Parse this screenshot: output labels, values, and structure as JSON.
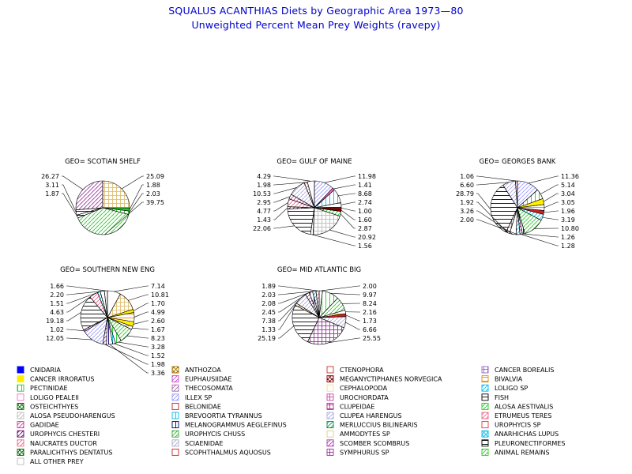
{
  "title": "SQUALUS ACANTHIAS Diets by Geographic Area 1973—80",
  "subtitle": "Unweighted Percent Mean Prey Weights (ravepy)",
  "chart_data": {
    "type": "pie",
    "legend_position": "bottom",
    "legend": [
      {
        "name": "CNIDARIA",
        "color": "#0000ff",
        "pattern": "solid"
      },
      {
        "name": "ANTHOZOA",
        "color": "#a07000",
        "pattern": "cross"
      },
      {
        "name": "CTENOPHORA",
        "color": "#cc3333",
        "pattern": "none"
      },
      {
        "name": "CANCER BOREALIS",
        "color": "#9966cc",
        "pattern": "grid"
      },
      {
        "name": "CANCER IRRORATUS",
        "color": "#ffee00",
        "pattern": "solid"
      },
      {
        "name": "EUPHAUSIIDAE",
        "color": "#cc44cc",
        "pattern": "diag"
      },
      {
        "name": "MEGANYCTIPHANES NORVEGICA",
        "color": "#800000",
        "pattern": "crossgrid"
      },
      {
        "name": "BIVALVIA",
        "color": "#ee8800",
        "pattern": "hlines"
      },
      {
        "name": "PECTINIDAE",
        "color": "#22cc22",
        "pattern": "vlines"
      },
      {
        "name": "THECOSOMATA",
        "color": "#aa66aa",
        "pattern": "diag"
      },
      {
        "name": "CEPHALOPODA",
        "color": "#eedd99",
        "pattern": "none"
      },
      {
        "name": "LOLIGO SP",
        "color": "#00bbee",
        "pattern": "diag"
      },
      {
        "name": "LOLIGO PEALEII",
        "color": "#ff66cc",
        "pattern": "none"
      },
      {
        "name": "ILLEX SP",
        "color": "#9999ff",
        "pattern": "diag"
      },
      {
        "name": "UROCHORDATA",
        "color": "#cc44aa",
        "pattern": "grid"
      },
      {
        "name": "FISH",
        "color": "#000000",
        "pattern": "hlines"
      },
      {
        "name": "OSTEICHTHYES",
        "color": "#006600",
        "pattern": "cross"
      },
      {
        "name": "BELONIDAE",
        "color": "#cc2222",
        "pattern": "none"
      },
      {
        "name": "CLUPEIDAE",
        "color": "#aa3388",
        "pattern": "grid"
      },
      {
        "name": "ALOSA AESTIVALIS",
        "color": "#22cc22",
        "pattern": "diag"
      },
      {
        "name": "ALOSA PSEUDOHARENGUS",
        "color": "#bbbbbb",
        "pattern": "diag"
      },
      {
        "name": "BREVOORTIA TYRANNUS",
        "color": "#00bbee",
        "pattern": "vlines"
      },
      {
        "name": "CLUPEA HARENGUS",
        "color": "#aaaadd",
        "pattern": "diag"
      },
      {
        "name": "ETRUMEUS TERES",
        "color": "#ee6688",
        "pattern": "diag"
      },
      {
        "name": "GADIDAE",
        "color": "#cc3399",
        "pattern": "diag"
      },
      {
        "name": "MELANOGRAMMUS AEGLEFINUS",
        "color": "#000066",
        "pattern": "vlines"
      },
      {
        "name": "MERLUCCIUS BILINEARIS",
        "color": "#008844",
        "pattern": "diag"
      },
      {
        "name": "UROPHYCIS SP",
        "color": "#ee3333",
        "pattern": "none"
      },
      {
        "name": "UROPHYCIS CHESTERI",
        "color": "#660066",
        "pattern": "diag"
      },
      {
        "name": "UROPHYCIS CHUSS",
        "color": "#33aa33",
        "pattern": "diag"
      },
      {
        "name": "AMMODYTES SP",
        "color": "#ddcc88",
        "pattern": "none"
      },
      {
        "name": "ANARHICHAS LUPUS",
        "color": "#00bbee",
        "pattern": "cross"
      },
      {
        "name": "NAUCRATES DUCTOR",
        "color": "#ee6688",
        "pattern": "diag"
      },
      {
        "name": "SCIAENIDAE",
        "color": "#aaaacc",
        "pattern": "diag"
      },
      {
        "name": "SCOMBER SCOMBRUS",
        "color": "#aa33aa",
        "pattern": "diag"
      },
      {
        "name": "PLEURONECTIFORMES",
        "color": "#000000",
        "pattern": "hlines"
      },
      {
        "name": "PARALICHTHYS DENTATUS",
        "color": "#006600",
        "pattern": "cross"
      },
      {
        "name": "SCOPHTHALMUS AQUOSUS",
        "color": "#cc2222",
        "pattern": "none"
      },
      {
        "name": "SYMPHURUS SP",
        "color": "#993399",
        "pattern": "grid"
      },
      {
        "name": "ANIMAL REMAINS",
        "color": "#22cc22",
        "pattern": "diag"
      },
      {
        "name": "ALL OTHER PREY",
        "color": "#bbbbbb",
        "pattern": "none"
      }
    ],
    "pies": [
      {
        "title": "GEO= SCOTIAN SHELF",
        "slices": [
          {
            "value": 25.09,
            "label": "25.09",
            "side": "right",
            "pattern": "grid",
            "color": "#e0c070"
          },
          {
            "value": 1.88,
            "label": "1.88",
            "side": "right",
            "pattern": "solid",
            "color": "#22cc22"
          },
          {
            "value": 2.03,
            "label": "2.03",
            "side": "right",
            "pattern": "vlines",
            "color": "#22cc22"
          },
          {
            "value": 39.75,
            "label": "39.75",
            "side": "right",
            "pattern": "diag",
            "color": "#22cc22"
          },
          {
            "value": 26.27,
            "label": "26.27",
            "side": "left",
            "pattern": "diag",
            "color": "#993399"
          },
          {
            "value": 3.11,
            "label": "3.11",
            "side": "left",
            "pattern": "hlines",
            "color": "#000066"
          },
          {
            "value": 1.87,
            "label": "1.87",
            "side": "left",
            "pattern": "hlines",
            "color": "#000000"
          }
        ]
      },
      {
        "title": "GEO= GULF OF MAINE",
        "slices": [
          {
            "value": 11.98,
            "label": "11.98",
            "side": "right",
            "pattern": "diag",
            "color": "#9999ff"
          },
          {
            "value": 1.41,
            "label": "1.41",
            "side": "right",
            "pattern": "solid",
            "color": "#ff66cc"
          },
          {
            "value": 8.68,
            "label": "8.68",
            "side": "right",
            "pattern": "vlines",
            "color": "#00bbee"
          },
          {
            "value": 2.74,
            "label": "2.74",
            "side": "right",
            "pattern": "hlines",
            "color": "#ee8800"
          },
          {
            "value": 1.0,
            "label": "1.00",
            "side": "right",
            "pattern": "solid",
            "color": "#cc2222"
          },
          {
            "value": 1.6,
            "label": "1.60",
            "side": "right",
            "pattern": "solid",
            "color": "#880000"
          },
          {
            "value": 2.87,
            "label": "2.87",
            "side": "right",
            "pattern": "diag",
            "color": "#22cc22"
          },
          {
            "value": 20.92,
            "label": "20.92",
            "side": "right",
            "pattern": "grid",
            "color": "#bbbbbb"
          },
          {
            "value": 1.56,
            "label": "1.56",
            "side": "right",
            "pattern": "vlines",
            "color": "#000066"
          },
          {
            "value": 4.29,
            "label": "4.29",
            "side": "left",
            "pattern": "none",
            "color": "#bbbbbb"
          },
          {
            "value": 1.98,
            "label": "1.98",
            "side": "left",
            "pattern": "diag",
            "color": "#ee6688"
          },
          {
            "value": 10.53,
            "label": "10.53",
            "side": "left",
            "pattern": "diag",
            "color": "#aaaadd"
          },
          {
            "value": 2.95,
            "label": "2.95",
            "side": "left",
            "pattern": "diag",
            "color": "#cc3399"
          },
          {
            "value": 4.77,
            "label": "4.77",
            "side": "left",
            "pattern": "diag",
            "color": "#ee6688"
          },
          {
            "value": 1.43,
            "label": "1.43",
            "side": "left",
            "pattern": "diag",
            "color": "#660066"
          },
          {
            "value": 22.06,
            "label": "22.06",
            "side": "left",
            "pattern": "hlines",
            "color": "#000000"
          }
        ]
      },
      {
        "title": "GEO= GEORGES BANK",
        "slices": [
          {
            "value": 11.36,
            "label": "11.36",
            "side": "right",
            "pattern": "diag",
            "color": "#9999ff"
          },
          {
            "value": 5.14,
            "label": "5.14",
            "side": "right",
            "pattern": "vlines",
            "color": "#22cc22"
          },
          {
            "value": 3.04,
            "label": "3.04",
            "side": "right",
            "pattern": "solid",
            "color": "#ffee00"
          },
          {
            "value": 3.05,
            "label": "3.05",
            "side": "right",
            "pattern": "hlines",
            "color": "#ee8800"
          },
          {
            "value": 1.96,
            "label": "1.96",
            "side": "right",
            "pattern": "solid",
            "color": "#cc2222"
          },
          {
            "value": 3.19,
            "label": "3.19",
            "side": "right",
            "pattern": "diag",
            "color": "#00bbee"
          },
          {
            "value": 10.8,
            "label": "10.80",
            "side": "right",
            "pattern": "diag",
            "color": "#22cc22"
          },
          {
            "value": 1.26,
            "label": "1.26",
            "side": "right",
            "pattern": "vlines",
            "color": "#000066"
          },
          {
            "value": 1.28,
            "label": "1.28",
            "side": "right",
            "pattern": "diag",
            "color": "#993399"
          },
          {
            "value": 1.06,
            "label": "1.06",
            "side": "left",
            "pattern": "diag",
            "color": "#ee6688"
          },
          {
            "value": 6.6,
            "label": "6.60",
            "side": "left",
            "pattern": "diag",
            "color": "#aaaadd"
          },
          {
            "value": 28.79,
            "label": "28.79",
            "side": "left",
            "pattern": "hlines",
            "color": "#000000"
          },
          {
            "value": 1.92,
            "label": "1.92",
            "side": "left",
            "pattern": "grid",
            "color": "#cc44aa"
          },
          {
            "value": 3.26,
            "label": "3.26",
            "side": "left",
            "pattern": "none",
            "color": "#ff66cc"
          },
          {
            "value": 2.0,
            "label": "2.00",
            "side": "left",
            "pattern": "diag",
            "color": "#00bbee"
          }
        ]
      },
      {
        "title": "GEO= SOUTHERN NEW ENG",
        "slices": [
          {
            "value": 7.14,
            "label": "7.14",
            "side": "right",
            "pattern": "none",
            "color": "#ff66cc"
          },
          {
            "value": 10.81,
            "label": "10.81",
            "side": "right",
            "pattern": "grid",
            "color": "#e0c070"
          },
          {
            "value": 1.7,
            "label": "1.70",
            "side": "right",
            "pattern": "solid",
            "color": "#ffee00"
          },
          {
            "value": 4.99,
            "label": "4.99",
            "side": "right",
            "pattern": "hlines",
            "color": "#ee8800"
          },
          {
            "value": 2.6,
            "label": "2.60",
            "side": "right",
            "pattern": "solid",
            "color": "#ffee00"
          },
          {
            "value": 1.67,
            "label": "1.67",
            "side": "right",
            "pattern": "hlines",
            "color": "#ee8800"
          },
          {
            "value": 8.23,
            "label": "8.23",
            "side": "right",
            "pattern": "diag",
            "color": "#22cc22"
          },
          {
            "value": 3.28,
            "label": "3.28",
            "side": "right",
            "pattern": "vlines",
            "color": "#22cc22"
          },
          {
            "value": 1.52,
            "label": "1.52",
            "side": "right",
            "pattern": "vlines",
            "color": "#00bbee"
          },
          {
            "value": 3.36,
            "label": "3.36",
            "side": "right",
            "pattern": "vlines",
            "color": "#000066"
          },
          {
            "value": 1.98,
            "label": "1.98",
            "side": "right",
            "pattern": "diag",
            "color": "#993399"
          },
          {
            "value": 1.66,
            "label": "1.66",
            "side": "left",
            "pattern": "none",
            "color": "#cc2222"
          },
          {
            "value": 2.2,
            "label": "2.20",
            "side": "left",
            "pattern": "none",
            "color": "#ee3333"
          },
          {
            "value": 1.51,
            "label": "1.51",
            "side": "left",
            "pattern": "diag",
            "color": "#00bbee"
          },
          {
            "value": 4.63,
            "label": "4.63",
            "side": "left",
            "pattern": "diag",
            "color": "#ee6688"
          },
          {
            "value": 19.18,
            "label": "19.18",
            "side": "left",
            "pattern": "hlines",
            "color": "#000000"
          },
          {
            "value": 1.02,
            "label": "1.02",
            "side": "left",
            "pattern": "grid",
            "color": "#cc44aa"
          },
          {
            "value": 12.05,
            "label": "12.05",
            "side": "left",
            "pattern": "diag",
            "color": "#9999ff"
          }
        ]
      },
      {
        "title": "GEO= MID ATLANTIC BIG",
        "slices": [
          {
            "value": 2.0,
            "label": "2.00",
            "side": "right",
            "pattern": "none",
            "color": "#ff66cc"
          },
          {
            "value": 9.97,
            "label": "9.97",
            "side": "right",
            "pattern": "vlines",
            "color": "#22cc22"
          },
          {
            "value": 8.24,
            "label": "8.24",
            "side": "right",
            "pattern": "diag",
            "color": "#22cc22"
          },
          {
            "value": 2.16,
            "label": "2.16",
            "side": "right",
            "pattern": "hlines",
            "color": "#ee8800"
          },
          {
            "value": 1.73,
            "label": "1.73",
            "side": "right",
            "pattern": "solid",
            "color": "#cc2222"
          },
          {
            "value": 6.66,
            "label": "6.66",
            "side": "right",
            "pattern": "diag",
            "color": "#aaaadd"
          },
          {
            "value": 25.55,
            "label": "25.55",
            "side": "right",
            "pattern": "grid",
            "color": "#993399"
          },
          {
            "value": 1.89,
            "label": "1.89",
            "side": "left",
            "pattern": "diag",
            "color": "#ee6688"
          },
          {
            "value": 2.03,
            "label": "2.03",
            "side": "left",
            "pattern": "diag",
            "color": "#00bbee"
          },
          {
            "value": 2.08,
            "label": "2.08",
            "side": "left",
            "pattern": "vlines",
            "color": "#000066"
          },
          {
            "value": 2.45,
            "label": "2.45",
            "side": "left",
            "pattern": "diag",
            "color": "#993399"
          },
          {
            "value": 7.38,
            "label": "7.38",
            "side": "left",
            "pattern": "diag",
            "color": "#aaaadd"
          },
          {
            "value": 1.33,
            "label": "1.33",
            "side": "left",
            "pattern": "hlines",
            "color": "#ee8800"
          },
          {
            "value": 25.19,
            "label": "25.19",
            "side": "left",
            "pattern": "hlines",
            "color": "#000000"
          }
        ]
      }
    ]
  }
}
